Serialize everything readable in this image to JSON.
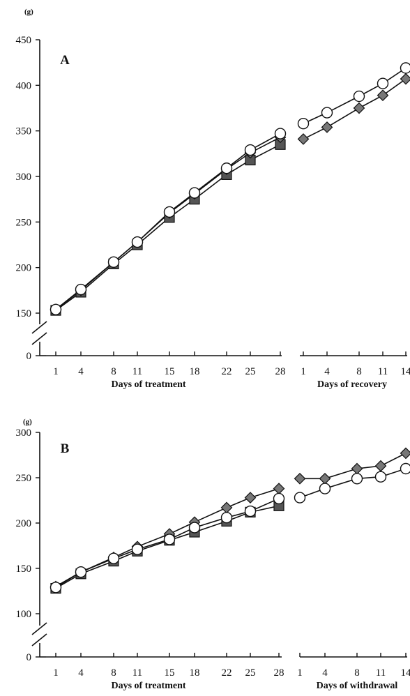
{
  "chart_data": [
    {
      "type": "line",
      "panel_label": "A",
      "unit_label": "(g)",
      "y_ticks": [
        0,
        150,
        200,
        250,
        300,
        350,
        400,
        450
      ],
      "ylim": [
        0,
        450
      ],
      "axis_break": "between 0 and 150",
      "treatment": {
        "xlabel": "Days of treatment",
        "x_ticks": [
          1,
          4,
          8,
          11,
          15,
          18,
          22,
          25,
          28
        ],
        "series": [
          {
            "marker": "square",
            "fill": "#555555",
            "values": [
              153,
              173,
              204,
              225,
              255,
              275,
              302,
              318,
              335
            ]
          },
          {
            "marker": "diamond",
            "fill": "#777777",
            "values": [
              154,
              175,
              206,
              228,
              260,
              281,
              308,
              326,
              343
            ]
          },
          {
            "marker": "circle",
            "fill": "#ffffff",
            "values": [
              154,
              176,
              206,
              228,
              261,
              282,
              309,
              329,
              347
            ]
          }
        ]
      },
      "recovery": {
        "xlabel": "Days of recovery",
        "x_ticks": [
          1,
          4,
          8,
          11,
          14
        ],
        "series": [
          {
            "marker": "diamond",
            "fill": "#777777",
            "values": [
              341,
              354,
              375,
              389,
              407
            ]
          },
          {
            "marker": "circle",
            "fill": "#ffffff",
            "values": [
              358,
              370,
              388,
              402,
              419
            ]
          }
        ]
      }
    },
    {
      "type": "line",
      "panel_label": "B",
      "unit_label": "(g)",
      "y_ticks": [
        0,
        100,
        150,
        200,
        250,
        300
      ],
      "ylim": [
        0,
        300
      ],
      "axis_break": "between 0 and 100",
      "treatment": {
        "xlabel": "Days of treatment",
        "x_ticks": [
          1,
          4,
          8,
          11,
          15,
          18,
          22,
          25,
          28
        ],
        "series": [
          {
            "marker": "square",
            "fill": "#555555",
            "values": [
              128,
              144,
              158,
              169,
              181,
              190,
              202,
              212,
              219
            ]
          },
          {
            "marker": "diamond",
            "fill": "#777777",
            "values": [
              130,
              146,
              162,
              174,
              188,
              201,
              217,
              228,
              238
            ]
          },
          {
            "marker": "circle",
            "fill": "#ffffff",
            "values": [
              129,
              146,
              161,
              171,
              182,
              195,
              206,
              213,
              227
            ]
          }
        ]
      },
      "recovery": {
        "xlabel": "Days of withdrawal",
        "x_ticks": [
          1,
          4,
          8,
          11,
          14
        ],
        "series": [
          {
            "marker": "diamond",
            "fill": "#777777",
            "values": [
              249,
              249,
              260,
              263,
              277
            ]
          },
          {
            "marker": "circle",
            "fill": "#ffffff",
            "values": [
              228,
              238,
              249,
              251,
              260
            ]
          }
        ]
      }
    }
  ]
}
